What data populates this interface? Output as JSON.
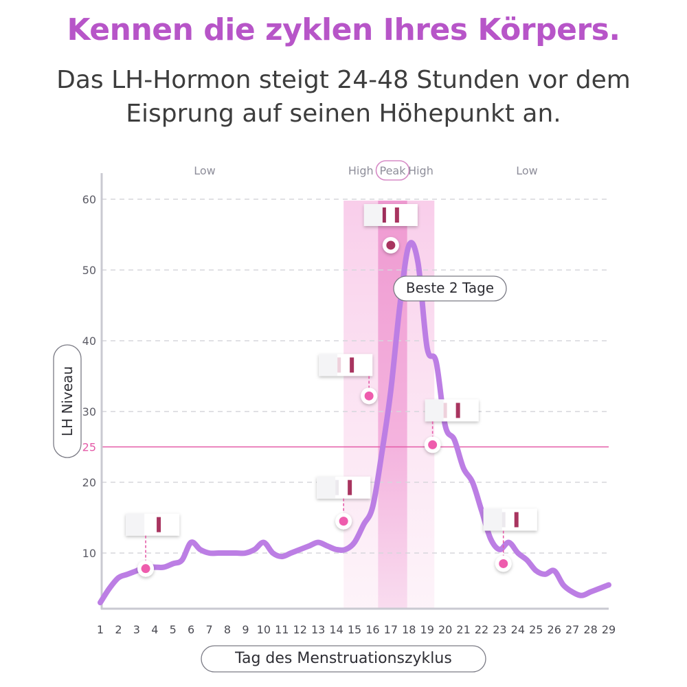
{
  "heading": {
    "title": "Kennen die zyklen Ihres Körpers.",
    "subtitle": "Das LH-Hormon steigt 24-48 Stunden vor dem Eisprung auf seinen Höhepunkt an."
  },
  "chart_data": {
    "type": "line",
    "title": "",
    "xlabel": "Tag des Menstruationszyklus",
    "ylabel": "LH Niveau",
    "xlim": [
      1,
      29
    ],
    "ylim": [
      0,
      62
    ],
    "x_ticks": [
      1,
      2,
      3,
      4,
      5,
      6,
      7,
      8,
      9,
      10,
      11,
      12,
      13,
      14,
      15,
      16,
      17,
      18,
      19,
      20,
      21,
      22,
      23,
      24,
      25,
      26,
      27,
      28,
      29
    ],
    "y_ticks": [
      10,
      20,
      30,
      40,
      50,
      60
    ],
    "threshold": {
      "value": 25,
      "label": "25",
      "color": "#e45aa7"
    },
    "grid": "horizontal dashed",
    "series": [
      {
        "color": "#bc7ee4",
        "x": [
          1,
          1.5,
          2,
          2.5,
          3,
          3.5,
          4,
          4.5,
          5,
          5.5,
          6,
          6.5,
          7,
          7.5,
          8,
          8.5,
          9,
          9.5,
          10,
          10.5,
          11,
          11.5,
          12,
          12.5,
          13,
          13.5,
          14,
          14.5,
          15,
          15.5,
          16,
          16.5,
          17,
          17.5,
          18,
          18.5,
          19,
          19.5,
          20,
          20.5,
          21,
          21.5,
          22,
          22.5,
          23,
          23.5,
          24,
          24.5,
          25,
          25.5,
          26,
          26.5,
          27,
          27.5,
          28,
          28.5,
          29
        ],
        "values": [
          3,
          5,
          6.5,
          7,
          7.5,
          8,
          8,
          8,
          8.5,
          9,
          11.5,
          10.5,
          10,
          10,
          10,
          10,
          10,
          10.5,
          11.5,
          10,
          9.5,
          10,
          10.5,
          11,
          11.5,
          11,
          10.5,
          10.5,
          11.5,
          14,
          16.5,
          24,
          33,
          45,
          53.5,
          51,
          39,
          37,
          28,
          26,
          22,
          20,
          16,
          12,
          10.5,
          11.5,
          10,
          9,
          7.5,
          7,
          7.5,
          5.5,
          4.5,
          4,
          4.5,
          5,
          5.5
        ]
      }
    ],
    "zones": [
      {
        "label": "Low",
        "from": 1,
        "to": 14.4
      },
      {
        "label": "High",
        "from": 14.4,
        "to": 16.3
      },
      {
        "label": "Peak",
        "from": 16.3,
        "to": 17.9
      },
      {
        "label": "High",
        "from": 17.9,
        "to": 19.4
      },
      {
        "label": "Low",
        "from": 19.4,
        "to": 29
      }
    ],
    "annotation": "Beste 2 Tage",
    "test_markers": [
      {
        "day": 3.5,
        "value": 7.8,
        "lines": "one"
      },
      {
        "day": 14.4,
        "value": 14.5,
        "lines": "faint"
      },
      {
        "day": 15.8,
        "value": 32.2,
        "lines": "two-light"
      },
      {
        "day": 17,
        "value": 53.5,
        "lines": "two-strong"
      },
      {
        "day": 19.3,
        "value": 25.3,
        "lines": "two-light"
      },
      {
        "day": 23.2,
        "value": 8.5,
        "lines": "faint"
      }
    ]
  }
}
